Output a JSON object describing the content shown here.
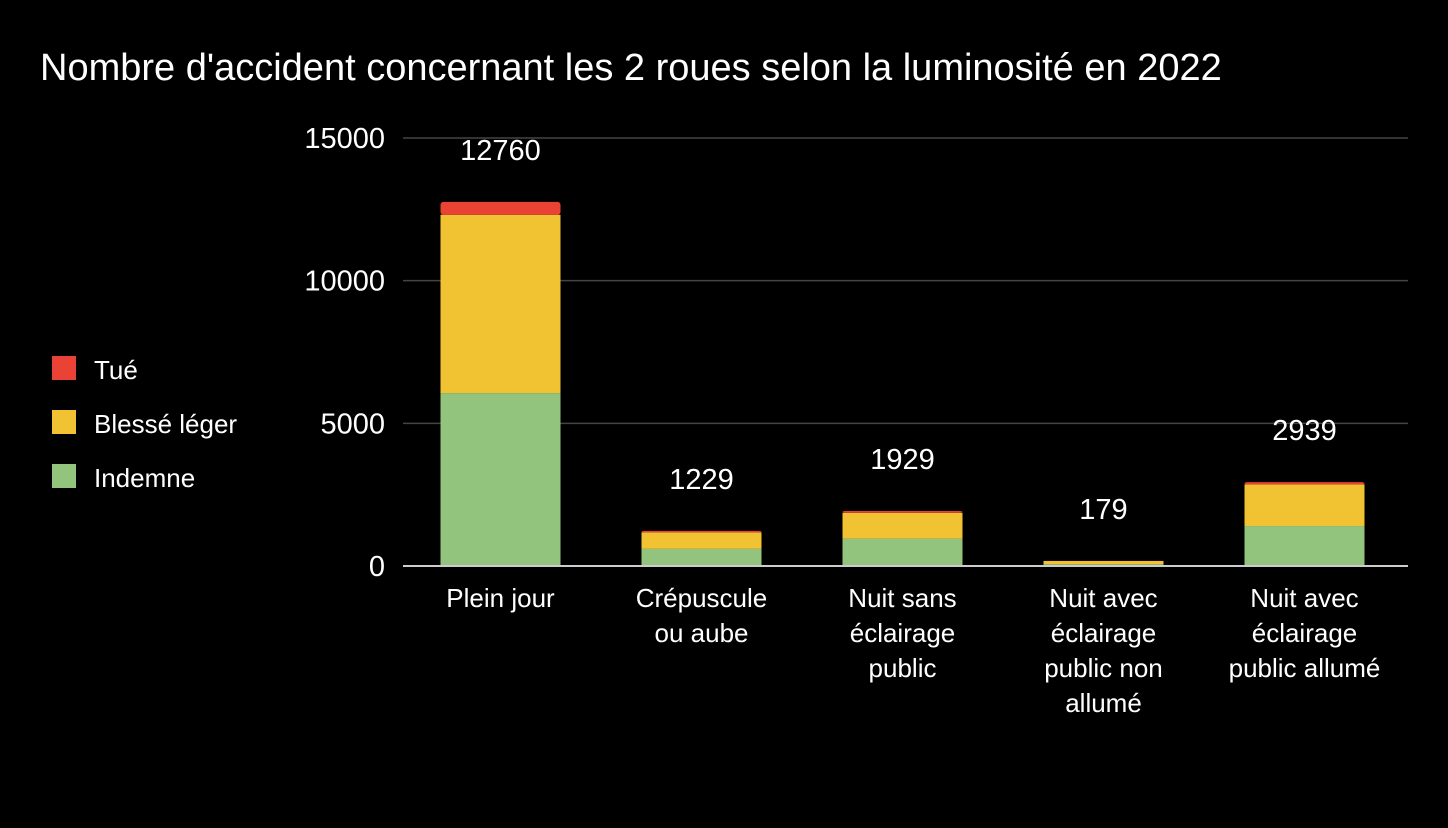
{
  "chart_data": {
    "type": "bar",
    "stacked": true,
    "title": "Nombre d'accident concernant les 2 roues selon la luminosité en 2022",
    "xlabel": "",
    "ylabel": "",
    "ylim": [
      0,
      15000
    ],
    "yticks": [
      "0",
      "5000",
      "10000",
      "15000"
    ],
    "grid": true,
    "legend_position": "left",
    "categories": [
      [
        "Plein jour"
      ],
      [
        "Crépuscule",
        "ou aube"
      ],
      [
        "Nuit sans",
        "éclairage",
        "public"
      ],
      [
        "Nuit avec",
        "éclairage",
        "public non",
        "allumé"
      ],
      [
        "Nuit avec",
        "éclairage",
        "public allumé"
      ]
    ],
    "series": [
      {
        "name": "Indemne",
        "color": "#93c47d",
        "values": [
          6060,
          600,
          960,
          60,
          1400
        ]
      },
      {
        "name": "Blessé léger",
        "color": "#f1c232",
        "values": [
          6250,
          580,
          900,
          115,
          1460
        ]
      },
      {
        "name": "Tué",
        "color": "#ea4335",
        "values": [
          450,
          49,
          69,
          4,
          79
        ]
      }
    ],
    "totals": [
      12760,
      1229,
      1929,
      179,
      2939
    ],
    "totals_labels": [
      "12760",
      "1229",
      "1929",
      "179",
      "2939"
    ],
    "legend_order": [
      "Tué",
      "Blessé léger",
      "Indemne"
    ],
    "colors": {
      "background": "#000000",
      "text": "#ffffff",
      "grid": "#444444",
      "axis": "#cccccc"
    }
  }
}
